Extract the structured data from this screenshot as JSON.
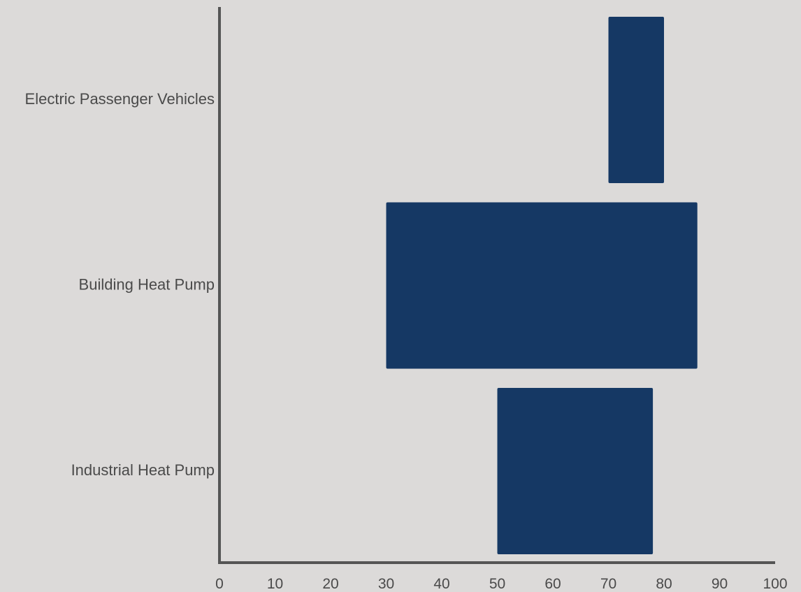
{
  "chart_data": {
    "type": "bar",
    "orientation": "horizontal",
    "style": "floating-range",
    "categories": [
      "Electric Passenger Vehicles",
      "Building Heat Pump",
      "Industrial Heat Pump"
    ],
    "ranges": [
      {
        "category": "Electric Passenger Vehicles",
        "start": 70,
        "end": 80
      },
      {
        "category": "Building Heat Pump",
        "start": 30,
        "end": 86
      },
      {
        "category": "Industrial Heat Pump",
        "start": 50,
        "end": 78
      }
    ],
    "title": "",
    "xlabel": "",
    "ylabel": "",
    "xlim": [
      0,
      100
    ],
    "xticks": [
      0,
      10,
      20,
      30,
      40,
      50,
      60,
      70,
      80,
      90,
      100
    ],
    "grid": false,
    "legend": "none",
    "colors": {
      "background": "#dcdad9",
      "bar": "#153864",
      "axis": "#555555",
      "text": "#4a4a4a"
    }
  }
}
